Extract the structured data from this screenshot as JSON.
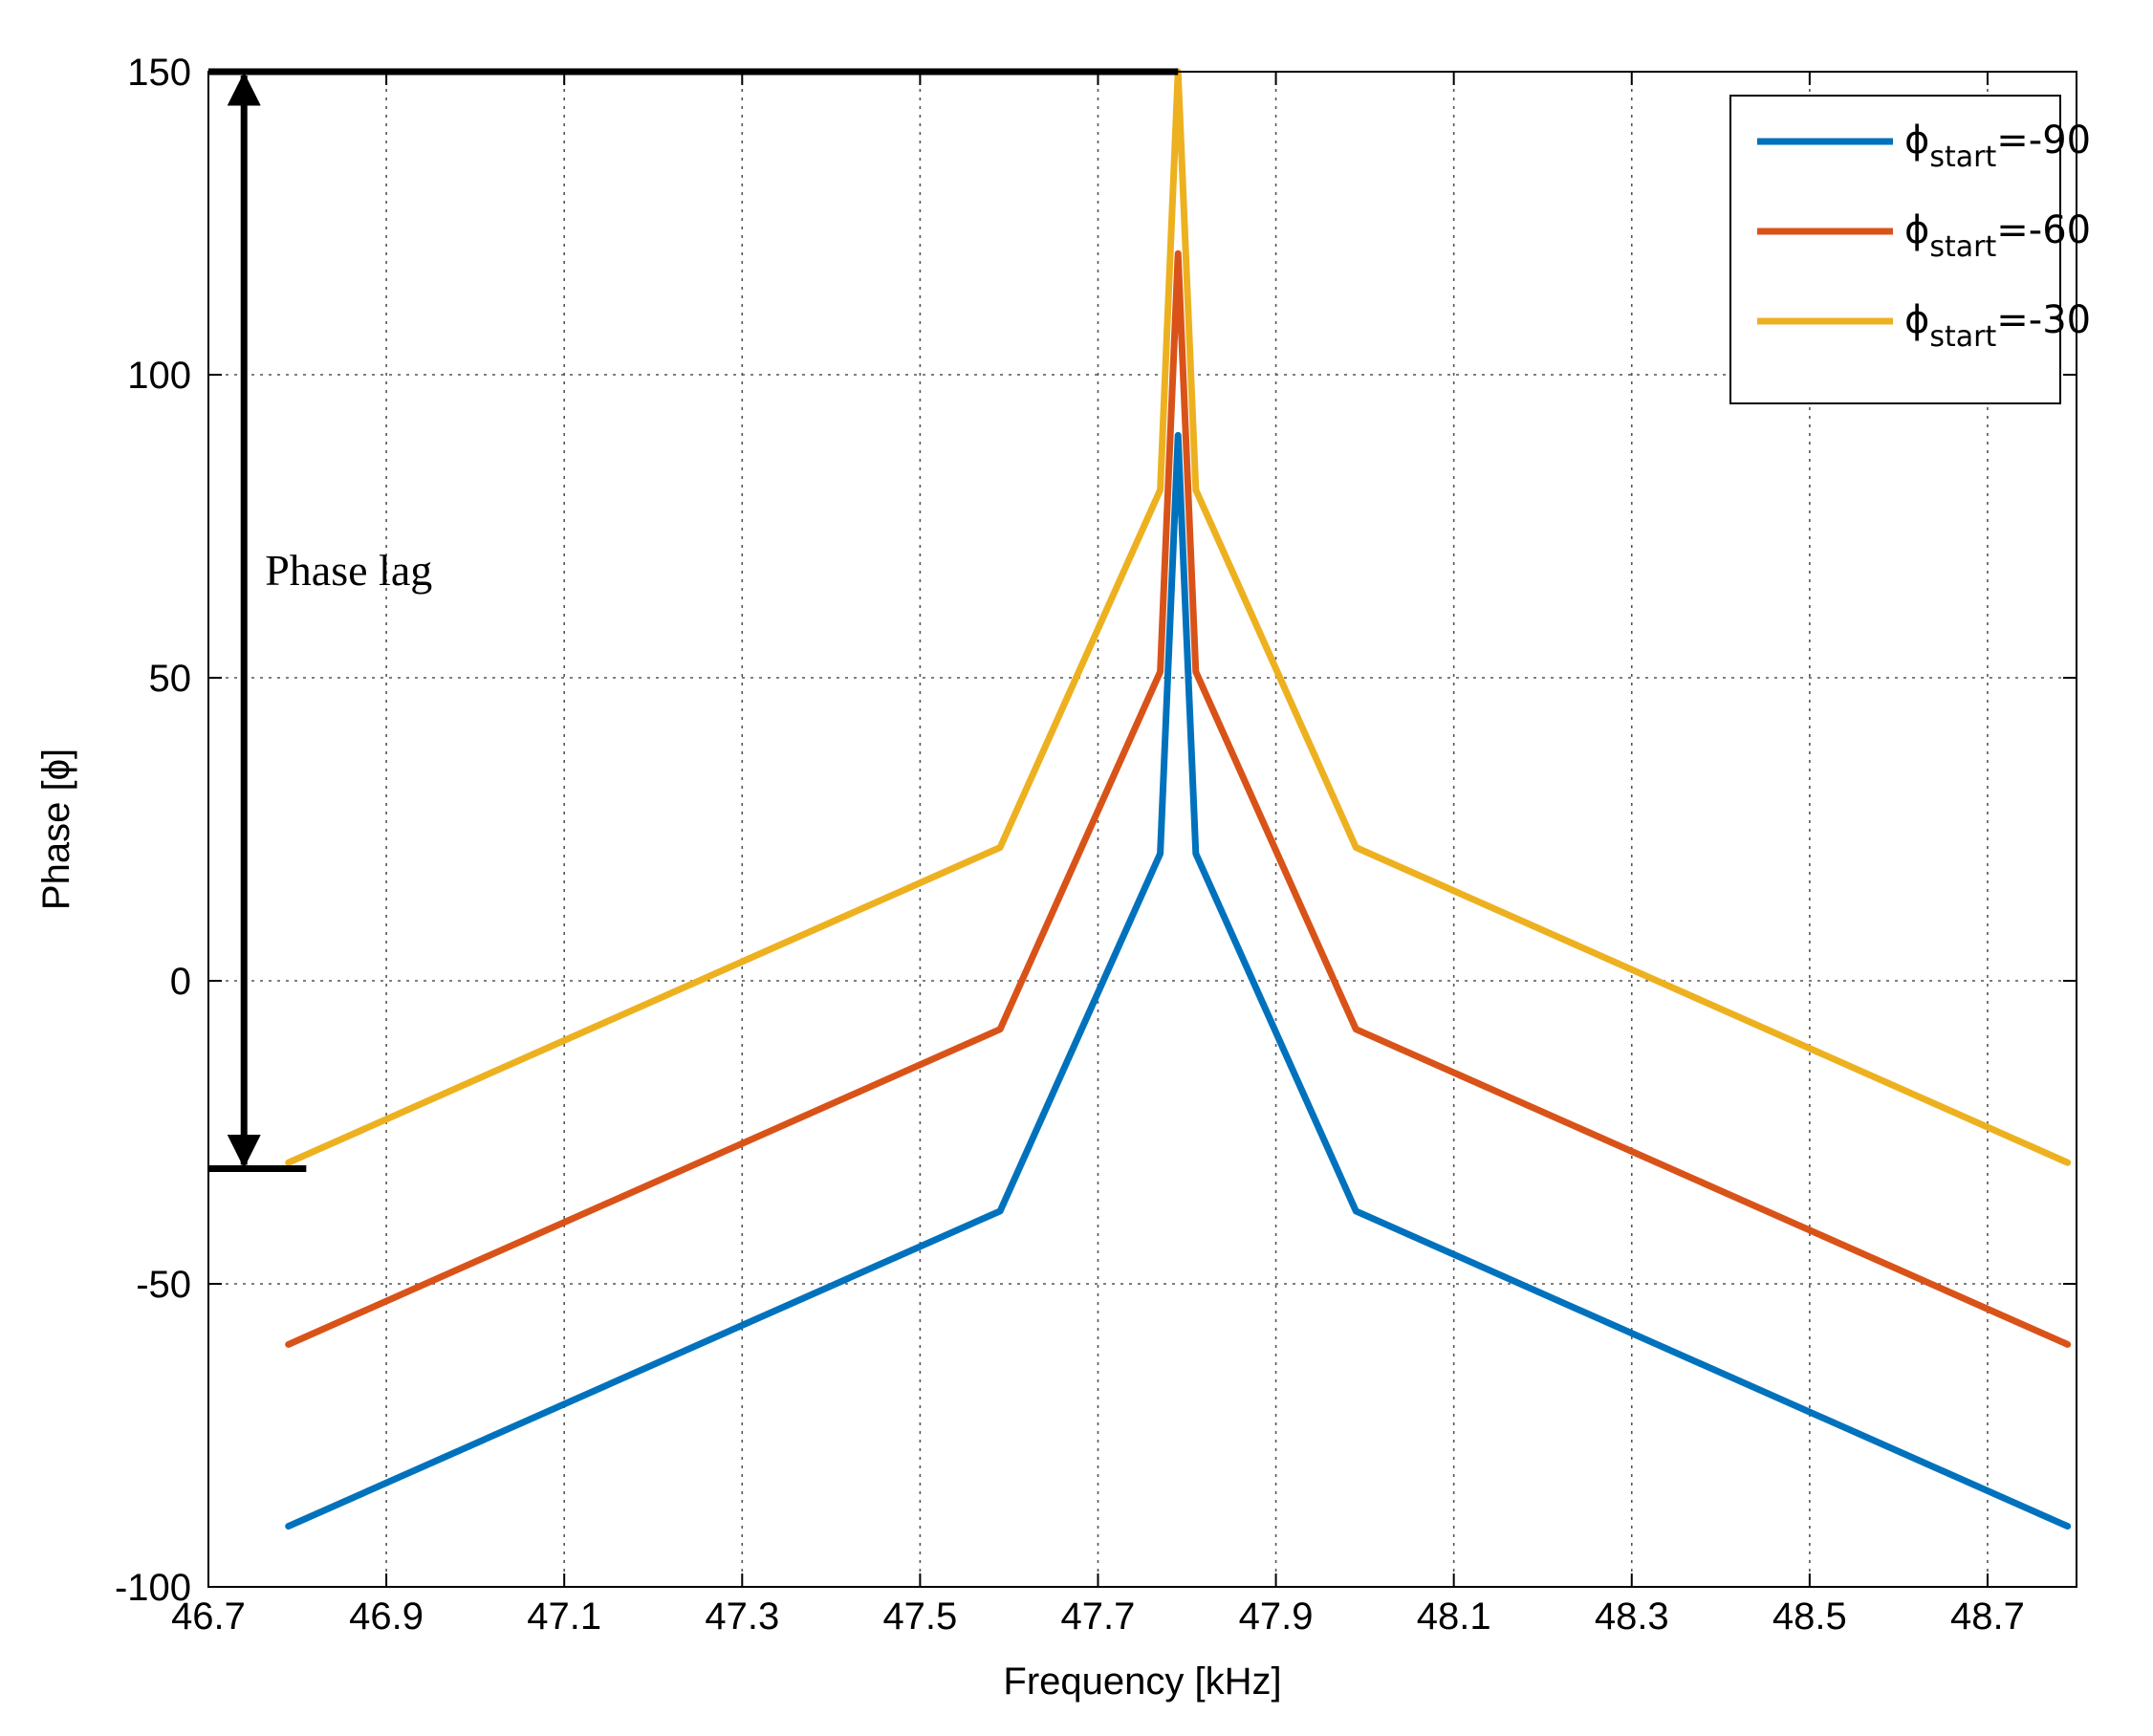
{
  "chart_data": {
    "type": "line",
    "title": "",
    "xlabel": "Frequency [kHz]",
    "ylabel": "Phase [ϕ]",
    "xlim": [
      46.7,
      48.8
    ],
    "ylim": [
      -100,
      150
    ],
    "xticks": [
      46.7,
      46.9,
      47.1,
      47.3,
      47.5,
      47.7,
      47.9,
      48.1,
      48.3,
      48.5,
      48.7
    ],
    "yticks": [
      -100,
      -50,
      0,
      50,
      100,
      150
    ],
    "grid": true,
    "legend_position": "top-right",
    "series": [
      {
        "name": "ϕstart=-90",
        "legend_main": "ϕ",
        "legend_sub": "start",
        "legend_tail": "=-90",
        "color": "#0072BD",
        "x": [
          46.79,
          47.59,
          47.77,
          47.79,
          47.81,
          47.99,
          48.79
        ],
        "y": [
          -90,
          -38,
          21,
          90,
          21,
          -38,
          -90
        ]
      },
      {
        "name": "ϕstart=-60",
        "legend_main": "ϕ",
        "legend_sub": "start",
        "legend_tail": "=-60",
        "color": "#D95319",
        "x": [
          46.79,
          47.59,
          47.77,
          47.79,
          47.81,
          47.99,
          48.79
        ],
        "y": [
          -60,
          -8,
          51,
          120,
          51,
          -8,
          -60
        ]
      },
      {
        "name": "ϕstart=-30",
        "legend_main": "ϕ",
        "legend_sub": "start",
        "legend_tail": "=-30",
        "color": "#EDB120",
        "x": [
          46.79,
          47.59,
          47.77,
          47.79,
          47.81,
          47.99,
          48.79
        ],
        "y": [
          -30,
          22,
          81,
          150,
          81,
          22,
          -30
        ]
      }
    ],
    "annotations": [
      {
        "text": "Phase lag",
        "arrow_x": 46.74,
        "from_y": 150,
        "to_y": -31,
        "top_bar_x": [
          46.7,
          47.79
        ],
        "bottom_bar_x": [
          46.7,
          46.81
        ]
      }
    ]
  }
}
